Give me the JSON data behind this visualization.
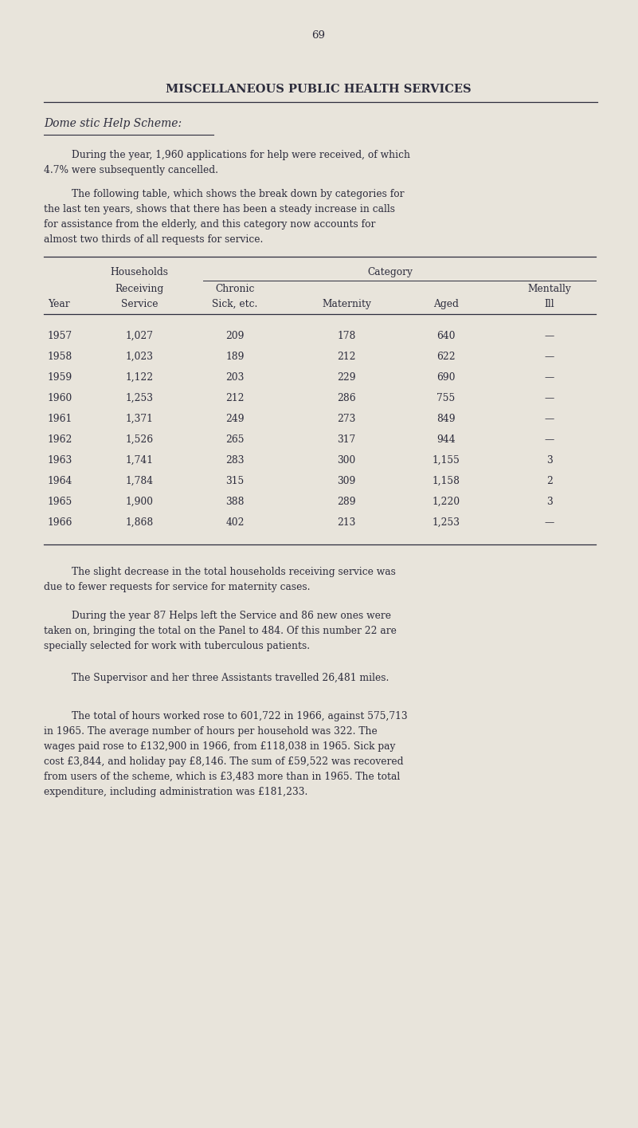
{
  "page_number": "69",
  "title": "MISCELLANEOUS PUBLIC HEALTH SERVICES",
  "section_heading": "Dome stic Help Scheme:",
  "para1_indent": "During the year, 1,960 applications for help were received, of which",
  "para1_cont": "4.7% were subsequently cancelled.",
  "para2_indent": "The following table, which shows the break down by categories for",
  "para2_line2": "the last ten years, shows that there has been a steady increase in calls",
  "para2_line3": "for assistance from the elderly, and this category now accounts for",
  "para2_line4": "almost two thirds of all requests for service.",
  "table_data": [
    [
      "1957",
      "1,027",
      "209",
      "178",
      "640",
      "—"
    ],
    [
      "1958",
      "1,023",
      "189",
      "212",
      "622",
      "—"
    ],
    [
      "1959",
      "1,122",
      "203",
      "229",
      "690",
      "—"
    ],
    [
      "1960",
      "1,253",
      "212",
      "286",
      "755",
      "—"
    ],
    [
      "1961",
      "1,371",
      "249",
      "273",
      "849",
      "—"
    ],
    [
      "1962",
      "1,526",
      "265",
      "317",
      "944",
      "—"
    ],
    [
      "1963",
      "1,741",
      "283",
      "300",
      "1,155",
      "3"
    ],
    [
      "1964",
      "1,784",
      "315",
      "309",
      "1,158",
      "2"
    ],
    [
      "1965",
      "1,900",
      "388",
      "289",
      "1,220",
      "3"
    ],
    [
      "1966",
      "1,868",
      "402",
      "213",
      "1,253",
      "—"
    ]
  ],
  "para3_indent": "The slight decrease in the total households receiving service was",
  "para3_cont": "due to fewer requests for service for maternity cases.",
  "para4_indent": "During the year 87 Helps left the Service and 86 new ones were",
  "para4_line2": "taken on, bringing the total on the Panel to 484. Of this number 22 are",
  "para4_line3": "specially selected for work with tuberculous patients.",
  "para5_indent": "The Supervisor and her three Assistants travelled 26,481 miles.",
  "para6_indent": "The total of hours worked rose to 601,722 in 1966, against 575,713",
  "para6_line2": "in 1965. The average number of hours per household was 322. The",
  "para6_line3": "wages paid rose to £132,900 in 1966, from £118,038 in 1965. Sick pay",
  "para6_line4": "cost £3,844, and holiday pay £8,146. The sum of £59,522 was recovered",
  "para6_line5": "from users of the scheme, which is £3,483 more than in 1965. The total",
  "para6_line6": "expenditure, including administration was £181,233.",
  "bg_color": "#e8e4db",
  "text_color": "#2c2c3c",
  "font_size_title": 10.5,
  "font_size_heading": 10,
  "font_size_body": 8.8,
  "font_size_page": 9.5
}
